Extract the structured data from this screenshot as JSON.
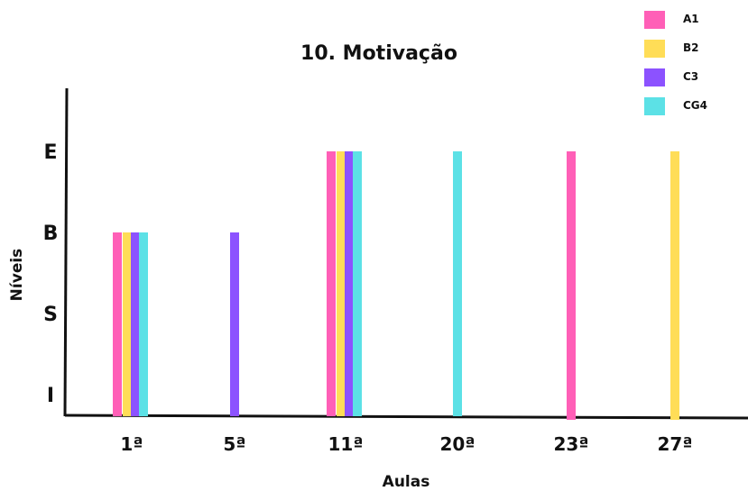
{
  "chart_data": {
    "type": "bar",
    "title": "10. Motivação",
    "xlabel": "Aulas",
    "ylabel": "Níveis",
    "y_levels": [
      "I",
      "S",
      "B",
      "E"
    ],
    "categories": [
      "1ª",
      "5ª",
      "11ª",
      "20ª",
      "23ª",
      "27ª"
    ],
    "series": [
      {
        "name": "A1",
        "color": "#ff5fb7",
        "values": [
          "B",
          null,
          "E",
          null,
          "E",
          null
        ]
      },
      {
        "name": "B2",
        "color": "#ffdd57",
        "values": [
          "B",
          null,
          "E",
          null,
          null,
          "E"
        ]
      },
      {
        "name": "C3",
        "color": "#8c52ff",
        "values": [
          "B",
          "B",
          "E",
          null,
          null,
          null
        ]
      },
      {
        "name": "CG4",
        "color": "#5ce1e6",
        "values": [
          "B",
          null,
          "E",
          "E",
          null,
          null
        ]
      }
    ],
    "grid": false,
    "legend_position": "top-right"
  }
}
